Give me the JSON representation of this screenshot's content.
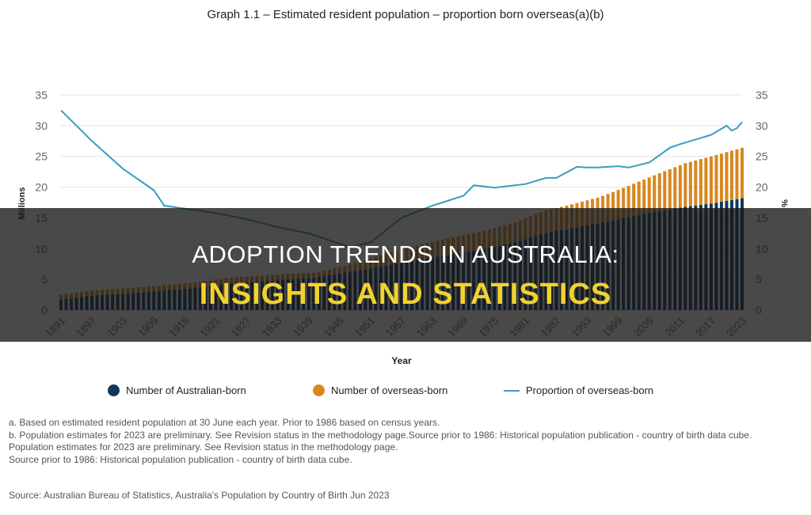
{
  "title": "Graph 1.1 – Estimated resident population – proportion born overseas(a)(b)",
  "headline": {
    "line1": "ADOPTION TRENDS IN AUSTRALIA:",
    "line2": "INSIGHTS AND STATISTICS"
  },
  "legend": {
    "australian": "Number of Australian-born",
    "overseas": "Number of overseas-born",
    "proportion": "Proportion of overseas-born"
  },
  "notes": [
    "a. Based on estimated resident population at 30 June each year. Prior to 1986 based on census years.",
    "b. Population estimates for 2023 are preliminary. See Revision status in the methodology page.Source prior to 1986: Historical population publication - country of birth data cube.",
    "Population estimates for 2023 are preliminary. See Revision status in the methodology page.",
    "Source prior to 1986: Historical population publication - country of birth data cube."
  ],
  "source": "Source: Australian Bureau of Statistics, Australia's Population by Country of Birth Jun 2023",
  "colors": {
    "australian": "#12375a",
    "overseas": "#d8871f",
    "proportion": "#3a9cc0",
    "grid": "#e3e3e3",
    "headline_accent": "#f2d22e"
  },
  "chart_data": {
    "type": "bar",
    "stacked": true,
    "xlabel": "Year",
    "ylabel": "Millions",
    "y2label": "%",
    "ylim": [
      0,
      35
    ],
    "y2lim": [
      0,
      35
    ],
    "yticks": [
      0,
      5,
      10,
      15,
      20,
      25,
      30,
      35
    ],
    "xticks": [
      "1891",
      "1897",
      "1903",
      "1909",
      "1915",
      "1921",
      "1927",
      "1933",
      "1939",
      "1945",
      "1951",
      "1957",
      "1963",
      "1969",
      "1975",
      "1981",
      "1987",
      "1993",
      "1999",
      "2005",
      "2011",
      "2017",
      "2023"
    ],
    "x_start": 1891,
    "x_end": 2023,
    "series": [
      {
        "name": "Number of Australian-born",
        "type": "bar",
        "values": [
          1.7,
          2.3,
          2.6,
          2.9,
          3.3,
          3.7,
          4.3,
          4.6,
          5.0,
          5.3,
          6.1,
          6.8,
          7.7,
          8.5,
          9.2,
          10.0,
          11.0,
          12.5,
          13.3,
          14.2,
          15.1,
          16.0,
          16.8,
          17.4,
          18.2
        ]
      },
      {
        "name": "Number of overseas-born",
        "type": "bar",
        "values": [
          0.8,
          0.85,
          0.88,
          0.9,
          0.9,
          0.95,
          1.0,
          0.95,
          0.88,
          0.8,
          1.1,
          1.7,
          2.2,
          2.5,
          2.8,
          3.0,
          3.3,
          3.6,
          3.9,
          4.2,
          5.1,
          6.1,
          7.1,
          7.7,
          8.2
        ]
      },
      {
        "name": "Proportion of overseas-born",
        "type": "line",
        "axis": "right",
        "x": [
          1891,
          1897,
          1903,
          1909,
          1911,
          1915,
          1921,
          1927,
          1933,
          1939,
          1945,
          1947,
          1951,
          1957,
          1963,
          1969,
          1971,
          1975,
          1981,
          1985,
          1987,
          1991,
          1993,
          1995,
          1999,
          2001,
          2005,
          2009,
          2011,
          2017,
          2020,
          2021,
          2022,
          2023
        ],
        "values": [
          32.5,
          27.5,
          23.0,
          19.5,
          17.0,
          16.5,
          15.8,
          14.8,
          13.5,
          12.5,
          10.8,
          10.2,
          11.0,
          15.0,
          17.0,
          18.6,
          20.3,
          19.9,
          20.5,
          21.5,
          21.5,
          23.3,
          23.2,
          23.2,
          23.4,
          23.2,
          24.0,
          26.4,
          27.0,
          28.5,
          30.0,
          29.2,
          29.6,
          30.6
        ]
      }
    ]
  }
}
